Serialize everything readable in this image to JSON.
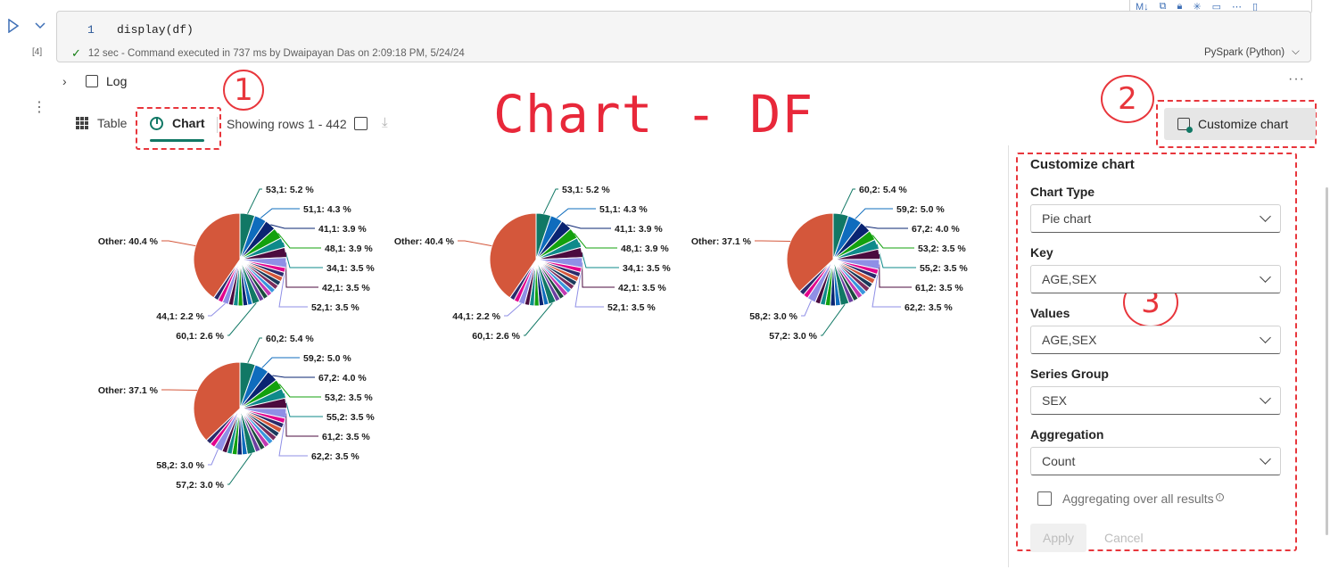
{
  "cell": {
    "exec_count": "[4]",
    "line_number": "1",
    "code": "display(df)",
    "status": "12 sec - Command executed in 737 ms by Dwaipayan Das on 2:09:18 PM, 5/24/24",
    "language": "PySpark (Python)",
    "toolbar_icons": [
      "markdown-icon",
      "mask-icon",
      "lock-icon",
      "freeze-icon",
      "comment-icon",
      "more-icon",
      "delete-icon"
    ]
  },
  "log": {
    "label": "Log"
  },
  "tabs": [
    {
      "label": "Table",
      "icon": "grid-icon",
      "selected": false
    },
    {
      "label": "Chart",
      "icon": "pie-chart-icon",
      "selected": true
    }
  ],
  "rows_info": "Showing rows 1 - 442",
  "annotation": {
    "title": "Chart - DF",
    "marker_1": "1",
    "marker_2": "2",
    "marker_3": "3",
    "color": "#e8363c"
  },
  "customize_button": {
    "label": "Customize chart"
  },
  "panel": {
    "title": "Customize chart",
    "chart_type_label": "Chart Type",
    "chart_type_value": "Pie chart",
    "key_label": "Key",
    "key_value": "AGE,SEX",
    "values_label": "Values",
    "values_value": "AGE,SEX",
    "series_label": "Series Group",
    "series_value": "SEX",
    "aggregation_label": "Aggregation",
    "aggregation_value": "Count",
    "aggregating_label": "Aggregating over all results",
    "aggregating_checked": false,
    "apply_label": "Apply",
    "cancel_label": "Cancel"
  },
  "chart_data": [
    {
      "type": "pie",
      "slices": [
        {
          "label": "53,1",
          "value": 5.2,
          "text": "53,1: 5.2 %"
        },
        {
          "label": "51,1",
          "value": 4.3,
          "text": "51,1: 4.3 %"
        },
        {
          "label": "41,1",
          "value": 3.9,
          "text": "41,1: 3.9 %"
        },
        {
          "label": "48,1",
          "value": 3.9,
          "text": "48,1: 3.9 %"
        },
        {
          "label": "34,1",
          "value": 3.5,
          "text": "34,1: 3.5 %"
        },
        {
          "label": "42,1",
          "value": 3.5,
          "text": "42,1: 3.5 %"
        },
        {
          "label": "52,1",
          "value": 3.5,
          "text": "52,1: 3.5 %"
        },
        {
          "label": "60,1",
          "value": 2.6,
          "text": "60,1: 2.6 %"
        },
        {
          "label": "44,1",
          "value": 2.2,
          "text": "44,1: 2.2 %"
        },
        {
          "label": "Other",
          "value": 40.4,
          "text": "Other: 40.4 %"
        }
      ]
    },
    {
      "type": "pie",
      "slices": [
        {
          "label": "53,1",
          "value": 5.2,
          "text": "53,1: 5.2 %"
        },
        {
          "label": "51,1",
          "value": 4.3,
          "text": "51,1: 4.3 %"
        },
        {
          "label": "41,1",
          "value": 3.9,
          "text": "41,1: 3.9 %"
        },
        {
          "label": "48,1",
          "value": 3.9,
          "text": "48,1: 3.9 %"
        },
        {
          "label": "34,1",
          "value": 3.5,
          "text": "34,1: 3.5 %"
        },
        {
          "label": "42,1",
          "value": 3.5,
          "text": "42,1: 3.5 %"
        },
        {
          "label": "52,1",
          "value": 3.5,
          "text": "52,1: 3.5 %"
        },
        {
          "label": "60,1",
          "value": 2.6,
          "text": "60,1: 2.6 %"
        },
        {
          "label": "44,1",
          "value": 2.2,
          "text": "44,1: 2.2 %"
        },
        {
          "label": "Other",
          "value": 40.4,
          "text": "Other: 40.4 %"
        }
      ]
    },
    {
      "type": "pie",
      "slices": [
        {
          "label": "60,2",
          "value": 5.4,
          "text": "60,2: 5.4 %"
        },
        {
          "label": "59,2",
          "value": 5.0,
          "text": "59,2: 5.0 %"
        },
        {
          "label": "67,2",
          "value": 4.0,
          "text": "67,2: 4.0 %"
        },
        {
          "label": "53,2",
          "value": 3.5,
          "text": "53,2: 3.5 %"
        },
        {
          "label": "55,2",
          "value": 3.5,
          "text": "55,2: 3.5 %"
        },
        {
          "label": "61,2",
          "value": 3.5,
          "text": "61,2: 3.5 %"
        },
        {
          "label": "62,2",
          "value": 3.5,
          "text": "62,2: 3.5 %"
        },
        {
          "label": "57,2",
          "value": 3.0,
          "text": "57,2: 3.0 %"
        },
        {
          "label": "58,2",
          "value": 3.0,
          "text": "58,2: 3.0 %"
        },
        {
          "label": "Other",
          "value": 37.1,
          "text": "Other: 37.1 %"
        }
      ]
    },
    {
      "type": "pie",
      "slices": [
        {
          "label": "60,2",
          "value": 5.4,
          "text": "60,2: 5.4 %"
        },
        {
          "label": "59,2",
          "value": 5.0,
          "text": "59,2: 5.0 %"
        },
        {
          "label": "67,2",
          "value": 4.0,
          "text": "67,2: 4.0 %"
        },
        {
          "label": "53,2",
          "value": 3.5,
          "text": "53,2: 3.5 %"
        },
        {
          "label": "55,2",
          "value": 3.5,
          "text": "55,2: 3.5 %"
        },
        {
          "label": "61,2",
          "value": 3.5,
          "text": "61,2: 3.5 %"
        },
        {
          "label": "62,2",
          "value": 3.5,
          "text": "62,2: 3.5 %"
        },
        {
          "label": "57,2",
          "value": 3.0,
          "text": "57,2: 3.0 %"
        },
        {
          "label": "58,2",
          "value": 3.0,
          "text": "58,2: 3.0 %"
        },
        {
          "label": "Other",
          "value": 37.1,
          "text": "Other: 37.1 %"
        }
      ]
    }
  ],
  "palette": [
    "#117865",
    "#0f6cbd",
    "#0a2472",
    "#13a10e",
    "#0e8a8a",
    "#4b0b3f",
    "#8f8fe6",
    "#e3008c",
    "#2b2b6b",
    "#d4573b",
    "#1a3b5c",
    "#7b2d5e",
    "#3a96dd",
    "#c239b3",
    "#1b4d3e",
    "#6b3fa0"
  ]
}
